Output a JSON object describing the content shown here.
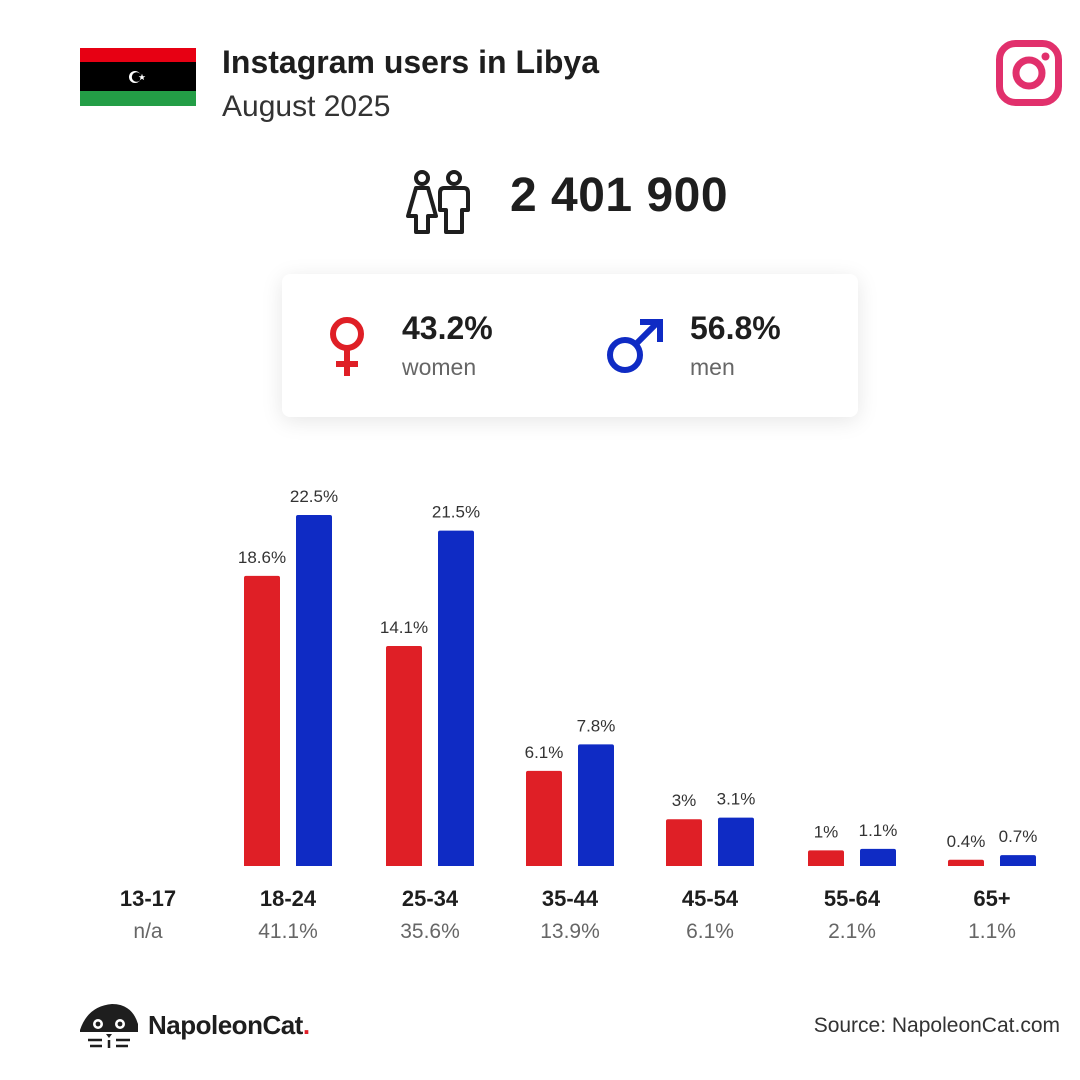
{
  "header": {
    "title": "Instagram users in Libya",
    "subtitle": "August 2025"
  },
  "total_users": "2 401 900",
  "gender": {
    "women_pct": "43.2%",
    "women_label": "women",
    "men_pct": "56.8%",
    "men_label": "men"
  },
  "colors": {
    "women": "#df1f26",
    "men": "#0f2bc4",
    "instagram": "#e1306c"
  },
  "icons": [
    "libya-flag",
    "instagram-icon",
    "people-icon",
    "female-symbol-icon",
    "male-symbol-icon",
    "napoleoncat-logo-icon"
  ],
  "chart_data": {
    "type": "bar",
    "categories": [
      "13-17",
      "18-24",
      "25-34",
      "35-44",
      "45-54",
      "55-64",
      "65+"
    ],
    "category_totals": [
      "n/a",
      "41.1%",
      "35.6%",
      "13.9%",
      "6.1%",
      "2.1%",
      "1.1%"
    ],
    "series": [
      {
        "name": "women",
        "values": [
          null,
          18.6,
          14.1,
          6.1,
          3,
          1,
          0.4
        ],
        "labels": [
          "",
          "18.6%",
          "14.1%",
          "6.1%",
          "3%",
          "1%",
          "0.4%"
        ]
      },
      {
        "name": "men",
        "values": [
          null,
          22.5,
          21.5,
          7.8,
          3.1,
          1.1,
          0.7
        ],
        "labels": [
          "",
          "22.5%",
          "21.5%",
          "7.8%",
          "3.1%",
          "1.1%",
          "0.7%"
        ]
      }
    ]
  },
  "footer": {
    "brand": "NapoleonCat",
    "brand_dot": ".",
    "source": "Source: NapoleonCat.com"
  }
}
